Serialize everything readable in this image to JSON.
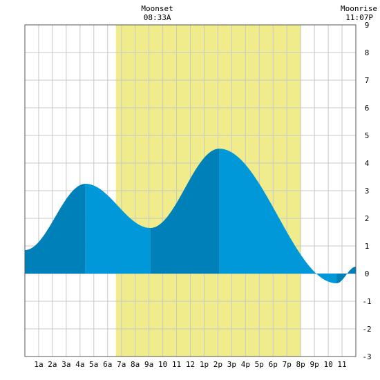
{
  "chart_data": {
    "type": "area",
    "xlim": [
      0,
      24
    ],
    "ylim": [
      -3,
      9
    ],
    "y_ticks": [
      -3,
      -2,
      -1,
      0,
      1,
      2,
      3,
      4,
      5,
      6,
      7,
      8,
      9
    ],
    "x_ticks": [
      {
        "x": 1,
        "label": "1a"
      },
      {
        "x": 2,
        "label": "2a"
      },
      {
        "x": 3,
        "label": "3a"
      },
      {
        "x": 4,
        "label": "4a"
      },
      {
        "x": 5,
        "label": "5a"
      },
      {
        "x": 6,
        "label": "6a"
      },
      {
        "x": 7,
        "label": "7a"
      },
      {
        "x": 8,
        "label": "8a"
      },
      {
        "x": 9,
        "label": "9a"
      },
      {
        "x": 10,
        "label": "10"
      },
      {
        "x": 11,
        "label": "11"
      },
      {
        "x": 12,
        "label": "12"
      },
      {
        "x": 13,
        "label": "1p"
      },
      {
        "x": 14,
        "label": "2p"
      },
      {
        "x": 15,
        "label": "3p"
      },
      {
        "x": 16,
        "label": "4p"
      },
      {
        "x": 17,
        "label": "5p"
      },
      {
        "x": 18,
        "label": "6p"
      },
      {
        "x": 19,
        "label": "7p"
      },
      {
        "x": 20,
        "label": "8p"
      },
      {
        "x": 21,
        "label": "9p"
      },
      {
        "x": 22,
        "label": "10"
      },
      {
        "x": 23,
        "label": "11"
      }
    ],
    "grid": true,
    "daylight": [
      6.6,
      20.0
    ],
    "colors": {
      "daylight": "#f0ec8c",
      "rising": "#0080b8",
      "falling": "#0098d8",
      "grid": "#c8c8c8",
      "frame": "#555555"
    },
    "extremes": [
      {
        "x": 0.0,
        "y": 0.85
      },
      {
        "x": 4.4,
        "y": 3.25
      },
      {
        "x": 9.1,
        "y": 1.65
      },
      {
        "x": 14.1,
        "y": 4.52
      },
      {
        "x": 22.6,
        "y": -0.35
      },
      {
        "x": 24.0,
        "y": 0.25
      }
    ],
    "annotations": [
      {
        "id": "moonset",
        "x": 9.5,
        "label": "Moonset",
        "time": "08:33A"
      },
      {
        "id": "moonrise",
        "x": 24.0,
        "label": "Moonrise",
        "time": "11:07P"
      }
    ]
  }
}
